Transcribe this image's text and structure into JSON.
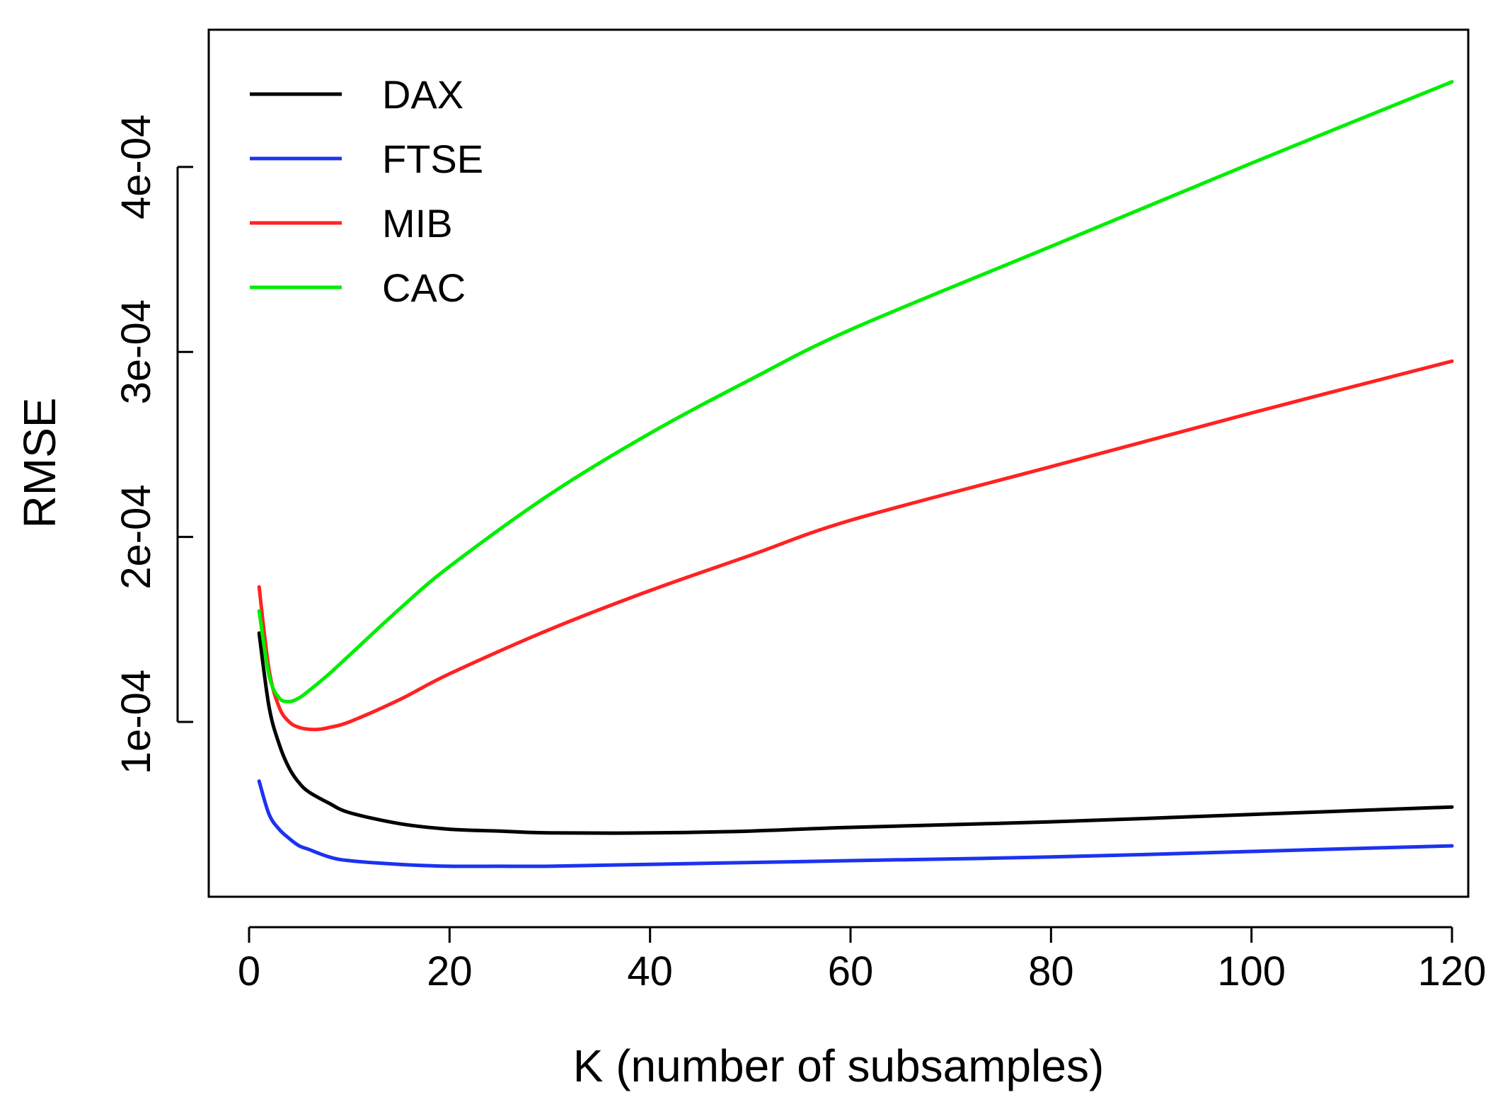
{
  "chart_data": {
    "type": "line",
    "title": "",
    "xlabel": "K (number of subsamples)",
    "ylabel": "RMSE",
    "xlim": [
      0,
      120
    ],
    "ylim": [
      1.2e-05,
      0.00046
    ],
    "x_ticks": [
      0,
      20,
      40,
      60,
      80,
      100,
      120
    ],
    "x_tick_labels": [
      "0",
      "20",
      "40",
      "60",
      "80",
      "100",
      "120"
    ],
    "y_ticks": [
      0.0001,
      0.0002,
      0.0003,
      0.0004
    ],
    "y_tick_labels": [
      "1e-04",
      "2e-04",
      "3e-04",
      "4e-04"
    ],
    "grid": false,
    "legend_position": "top-left",
    "series": [
      {
        "name": "DAX",
        "color": "#000000",
        "x": [
          1,
          2,
          3,
          4,
          5,
          6,
          8,
          10,
          15,
          20,
          25,
          30,
          40,
          50,
          60,
          80,
          100,
          120
        ],
        "y": [
          0.000148,
          0.000108,
          8.8e-05,
          7.5e-05,
          6.7e-05,
          6.2e-05,
          5.6e-05,
          5.1e-05,
          4.5e-05,
          4.2e-05,
          4.1e-05,
          4e-05,
          4e-05,
          4.1e-05,
          4.3e-05,
          4.6e-05,
          5e-05,
          5.4e-05
        ]
      },
      {
        "name": "FTSE",
        "color": "#1b33f0",
        "x": [
          1,
          2,
          3,
          4,
          5,
          6,
          8,
          10,
          15,
          20,
          25,
          30,
          40,
          50,
          60,
          80,
          100,
          120
        ],
        "y": [
          6.8e-05,
          5e-05,
          4.2e-05,
          3.7e-05,
          3.3e-05,
          3.1e-05,
          2.7e-05,
          2.5e-05,
          2.3e-05,
          2.2e-05,
          2.2e-05,
          2.2e-05,
          2.3e-05,
          2.4e-05,
          2.5e-05,
          2.7e-05,
          3e-05,
          3.3e-05
        ]
      },
      {
        "name": "MIB",
        "color": "#ff2222",
        "x": [
          1,
          2,
          3,
          4,
          5,
          6,
          7,
          8,
          10,
          15,
          20,
          30,
          40,
          50,
          60,
          80,
          100,
          120
        ],
        "y": [
          0.000173,
          0.000128,
          0.000108,
          0.0001,
          9.7e-05,
          9.6e-05,
          9.6e-05,
          9.7e-05,
          0.0001,
          0.000112,
          0.000126,
          0.00015,
          0.000171,
          0.00019,
          0.000209,
          0.000238,
          0.000267,
          0.000295
        ]
      },
      {
        "name": "CAC",
        "color": "#00ee00",
        "x": [
          1,
          2,
          3,
          4,
          5,
          6,
          8,
          10,
          15,
          20,
          30,
          40,
          50,
          60,
          80,
          100,
          120
        ],
        "y": [
          0.00016,
          0.000125,
          0.000113,
          0.000111,
          0.000113,
          0.000117,
          0.000126,
          0.000136,
          0.000161,
          0.000184,
          0.000223,
          0.000256,
          0.000285,
          0.000312,
          0.000357,
          0.000402,
          0.000446
        ]
      }
    ]
  }
}
